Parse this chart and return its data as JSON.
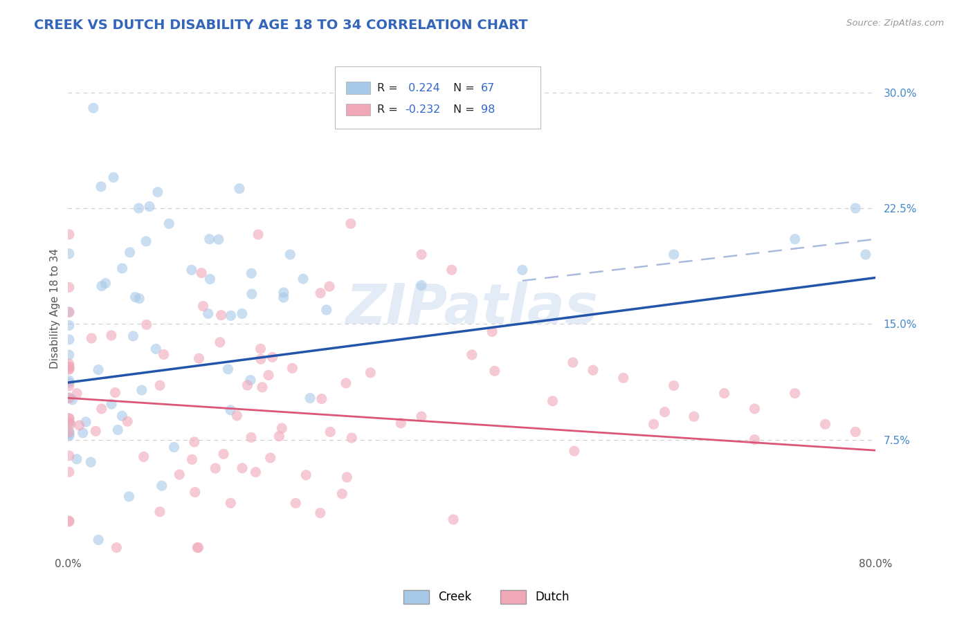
{
  "title": "CREEK VS DUTCH DISABILITY AGE 18 TO 34 CORRELATION CHART",
  "source": "Source: ZipAtlas.com",
  "ylabel": "Disability Age 18 to 34",
  "x_min": 0.0,
  "x_max": 0.8,
  "y_min": 0.0,
  "y_max": 0.32,
  "creek_R": 0.224,
  "creek_N": 67,
  "dutch_R": -0.232,
  "dutch_N": 98,
  "creek_color": "#a8c8e8",
  "dutch_color": "#f0a8b8",
  "creek_line_color": "#2255aa",
  "dutch_line_color": "#dd5577",
  "dashed_line_color": "#aabbdd",
  "background_color": "#ffffff",
  "grid_color": "#cccccc",
  "title_color": "#3366bb",
  "watermark_color": "#ccddf0",
  "creek_trend_start_y": 0.112,
  "creek_trend_end_y": 0.18,
  "dutch_trend_start_y": 0.102,
  "dutch_trend_end_y": 0.068,
  "dashed_trend_start_x": 0.45,
  "dashed_trend_start_y": 0.178,
  "dashed_trend_end_x": 0.8,
  "dashed_trend_end_y": 0.205
}
